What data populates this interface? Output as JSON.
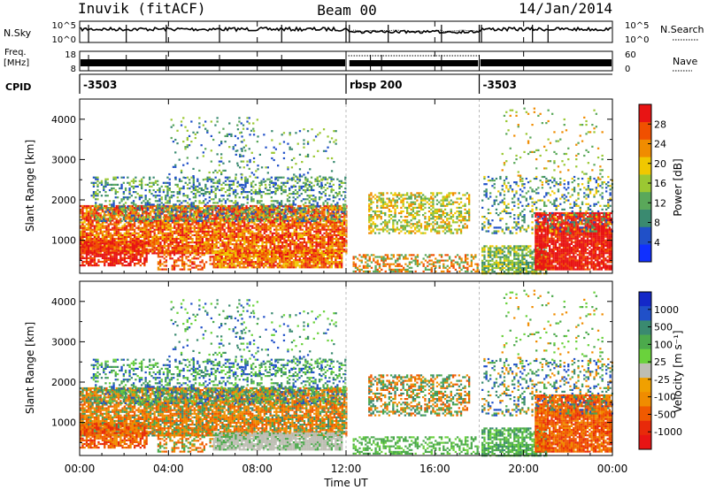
{
  "header": {
    "station": "Inuvik (fitACF)",
    "beam": "Beam 00",
    "date": "14/Jan/2014"
  },
  "noise_panel": {
    "left_label": "N.Sky",
    "right_label": "N.Search",
    "left_ticks": [
      "10^5",
      "10^0"
    ],
    "right_ticks": [
      "10^5",
      "10^0"
    ]
  },
  "freq_panel": {
    "left_label_1": "Freq.",
    "left_label_2": "[MHz]",
    "left_ticks": [
      "18",
      "8"
    ],
    "right_label": "Nave",
    "right_ticks": [
      "60",
      "0"
    ]
  },
  "cpid": {
    "label": "CPID",
    "segments": [
      {
        "start_hour": 0,
        "end_hour": 12,
        "text": "-3503"
      },
      {
        "start_hour": 12,
        "end_hour": 18,
        "text": "rbsp 200"
      },
      {
        "start_hour": 18,
        "end_hour": 24,
        "text": "-3503"
      }
    ]
  },
  "chart_data": [
    {
      "type": "heatmap",
      "name": "power",
      "ylabel": "Slant Range [km]",
      "yticks": [
        "1000",
        "2000",
        "3000",
        "4000"
      ],
      "ylim": [
        180,
        4500
      ],
      "colorbar_label": "Power [dB]",
      "colorbar_ticks": [
        "4",
        "8",
        "12",
        "16",
        "20",
        "24",
        "28"
      ],
      "colorbar_colors": [
        "#1030ff",
        "#2050c8",
        "#3a8a70",
        "#5aa85a",
        "#9bc832",
        "#f0c800",
        "#f08c00",
        "#f05000",
        "#e81414"
      ]
    },
    {
      "type": "heatmap",
      "name": "velocity",
      "ylabel": "Slant Range [km]",
      "yticks": [
        "1000",
        "2000",
        "3000",
        "4000"
      ],
      "ylim": [
        180,
        4500
      ],
      "colorbar_label": "Velocity [m s⁻¹]",
      "colorbar_ticks": [
        "1000",
        "500",
        "100",
        "25",
        "-25",
        "-100",
        "-500",
        "-1000"
      ],
      "colorbar_colors": [
        "#1428c8",
        "#2050c8",
        "#3a8a70",
        "#4caa4c",
        "#6ad23c",
        "#bebeb4",
        "#f0a000",
        "#f08c00",
        "#f05a00",
        "#e82a0a",
        "#e81414"
      ]
    }
  ],
  "x_axis": {
    "ticks": [
      "00:00",
      "04:00",
      "08:00",
      "12:00",
      "16:00",
      "20:00",
      "00:00"
    ],
    "label": "Time UT"
  },
  "colors": {
    "red": "#e81414",
    "orange": "#f07800",
    "yellow": "#f0c800",
    "green": "#5aa85a",
    "teal": "#3a8a70",
    "blue": "#2050c8",
    "grey": "#bebeb4"
  }
}
